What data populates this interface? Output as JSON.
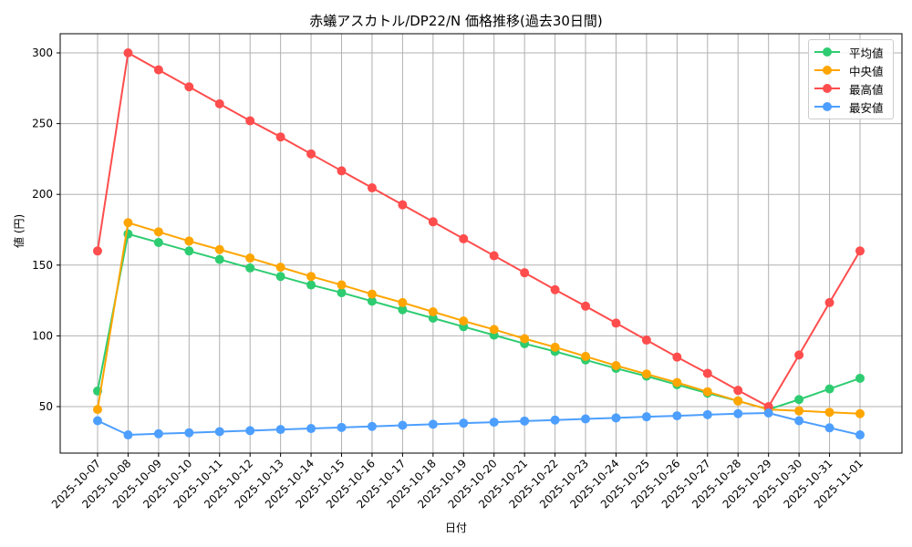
{
  "chart_data": {
    "type": "line",
    "title": "赤蟻アスカトル/DP22/N 価格推移(過去30日間)",
    "xlabel": "日付",
    "ylabel": "値 (円)",
    "ylim": [
      16,
      313
    ],
    "yticks": [
      50,
      100,
      150,
      200,
      250,
      300
    ],
    "grid": true,
    "legend_position": "upper right",
    "categories": [
      "2025-10-07",
      "2025-10-08",
      "2025-10-09",
      "2025-10-10",
      "2025-10-11",
      "2025-10-12",
      "2025-10-13",
      "2025-10-14",
      "2025-10-15",
      "2025-10-16",
      "2025-10-17",
      "2025-10-18",
      "2025-10-19",
      "2025-10-20",
      "2025-10-21",
      "2025-10-22",
      "2025-10-23",
      "2025-10-24",
      "2025-10-25",
      "2025-10-26",
      "2025-10-27",
      "2025-10-28",
      "2025-10-29",
      "2025-10-30",
      "2025-10-31",
      "2025-11-01"
    ],
    "series": [
      {
        "name": "平均値",
        "color": "#2ecc71",
        "values": [
          61,
          172,
          166,
          160,
          154,
          148,
          142,
          136,
          130.5,
          124.5,
          118.5,
          112.5,
          106.5,
          100.5,
          94.5,
          89,
          83,
          77,
          71.5,
          65.5,
          59.5,
          54,
          48,
          55,
          62.5,
          70
        ]
      },
      {
        "name": "中央値",
        "color": "#ffa500",
        "values": [
          48,
          180,
          173.5,
          167,
          161,
          155,
          148.5,
          142,
          136,
          129.5,
          123.5,
          117,
          110.5,
          104.5,
          98,
          92,
          85.5,
          79,
          73,
          67,
          60.5,
          54,
          48,
          47,
          46,
          45
        ]
      },
      {
        "name": "最高値",
        "color": "#ff4d4d",
        "values": [
          160,
          300,
          288,
          276,
          264,
          252,
          240.6,
          228.6,
          216.6,
          204.6,
          192.6,
          180.6,
          168.6,
          156.6,
          144.6,
          132.6,
          121,
          109,
          97,
          85,
          73.5,
          61.5,
          50,
          86.5,
          123.5,
          160
        ]
      },
      {
        "name": "最安値",
        "color": "#4d9fff",
        "values": [
          40,
          30,
          30.8,
          31.5,
          32.3,
          33,
          33.8,
          34.5,
          35.3,
          36,
          36.8,
          37.5,
          38.3,
          39,
          39.8,
          40.5,
          41.3,
          42,
          42.8,
          43.5,
          44.3,
          45,
          45.5,
          40,
          35,
          30
        ]
      }
    ]
  }
}
